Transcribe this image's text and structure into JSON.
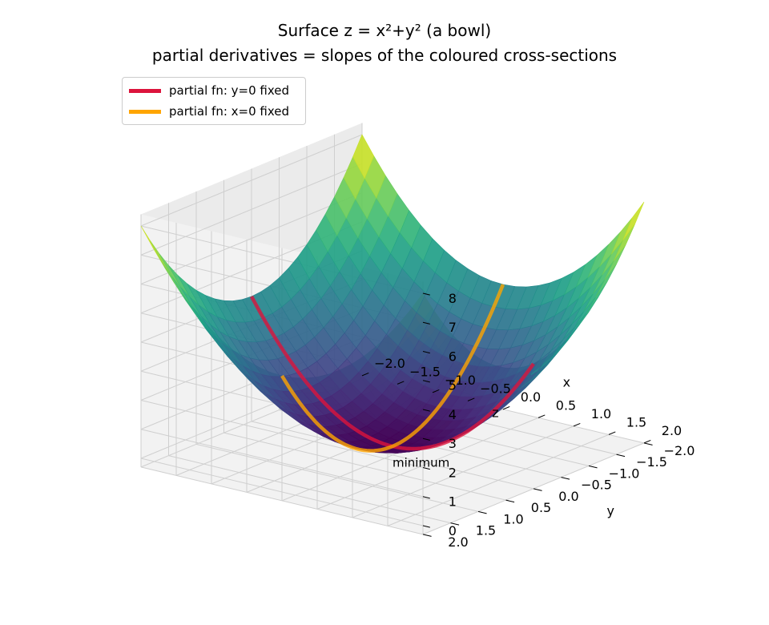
{
  "chart_data": {
    "type": "surface3d",
    "title": "Surface  z = x²+y²  (a bowl)",
    "subtitle": "partial derivatives = slopes of the coloured cross-sections",
    "function": "z = x^2 + y^2",
    "x": {
      "label": "x",
      "range": [
        -2,
        2
      ],
      "ticks": [
        "−2.0",
        "−1.5",
        "−1.0",
        "−0.5",
        "0.0",
        "0.5",
        "1.0",
        "1.5",
        "2.0"
      ]
    },
    "y": {
      "label": "y",
      "range": [
        -2,
        2
      ],
      "ticks": [
        "−2.0",
        "−1.5",
        "−1.0",
        "−0.5",
        "0.0",
        "0.5",
        "1.0",
        "1.5",
        "2.0"
      ]
    },
    "z": {
      "label": "z",
      "range": [
        0,
        8
      ],
      "ticks": [
        "0",
        "1",
        "2",
        "3",
        "4",
        "5",
        "6",
        "7",
        "8"
      ]
    },
    "colormap": "viridis",
    "grid": true,
    "legend_position": "top-left",
    "series": [
      {
        "name": "partial fn: y=0 fixed",
        "color": "#dc143c",
        "fixed": {
          "y": 0
        },
        "curve": "z = x^2",
        "x_range": [
          -2,
          2
        ]
      },
      {
        "name": "partial fn: x=0 fixed",
        "color": "#ffa500",
        "fixed": {
          "x": 0
        },
        "curve": "z = y^2",
        "y_range": [
          -2,
          2
        ]
      }
    ],
    "annotations": [
      {
        "text": "minimum",
        "point": [
          0,
          0,
          0
        ]
      }
    ]
  }
}
